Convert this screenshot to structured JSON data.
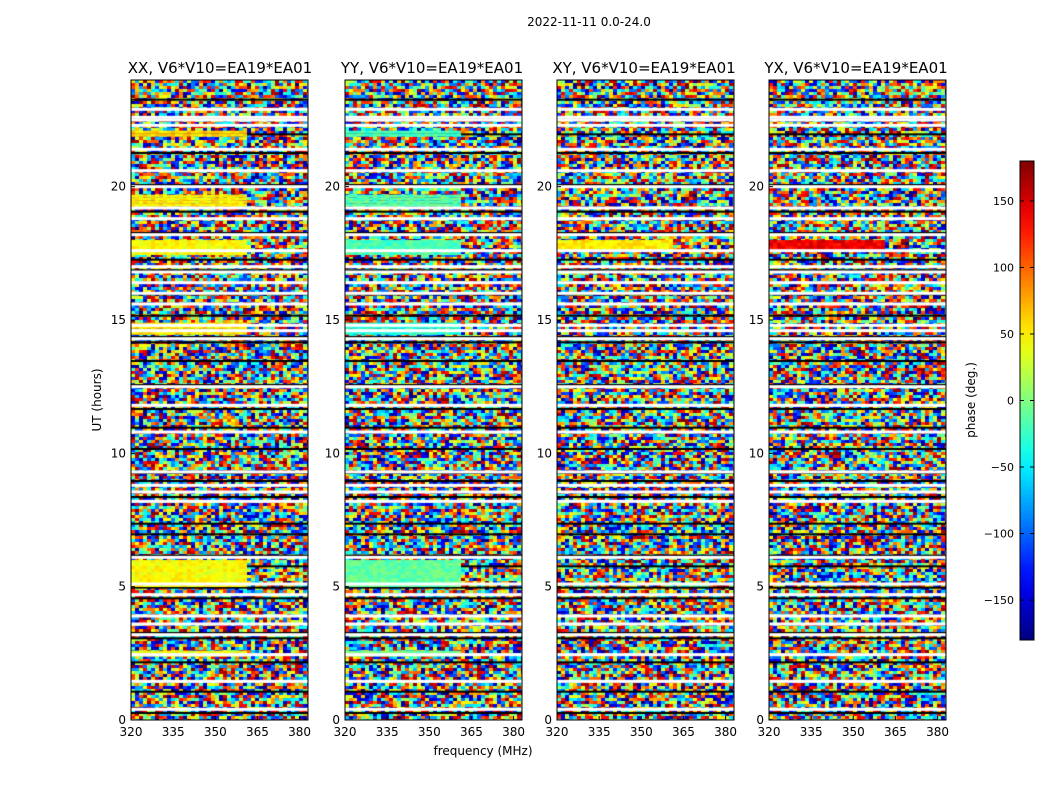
{
  "suptitle": "2022-11-11 0.0-24.0",
  "xlabel": "frequency (MHz)",
  "ylabel": "UT (hours)",
  "colorbar_label": "phase (deg.)",
  "chart_data": {
    "type": "heatmap",
    "title": "2022-11-11 0.0-24.0",
    "xlabel": "frequency (MHz)",
    "ylabel": "UT (hours)",
    "x_ticks": [
      320,
      335,
      350,
      365,
      380
    ],
    "y_ticks": [
      0,
      5,
      10,
      15,
      20
    ],
    "xlim": [
      320,
      383
    ],
    "ylim": [
      0,
      24
    ],
    "colormap": "jet",
    "colorbar": {
      "label": "phase (deg.)",
      "ticks": [
        150,
        100,
        50,
        0,
        -50,
        -100,
        -150
      ],
      "range": [
        -180,
        180
      ]
    },
    "panels": [
      {
        "title": "XX, V6*V10=EA19*EA01"
      },
      {
        "title": "YY, V6*V10=EA19*EA01"
      },
      {
        "title": "XY, V6*V10=EA19*EA01"
      },
      {
        "title": "YX, V6*V10=EA19*EA01"
      }
    ],
    "white_gaps_ut": [
      0.4,
      1.45,
      2.45,
      3.2,
      3.6,
      3.9,
      4.7,
      5.1,
      6.1,
      8.2,
      8.55,
      8.8,
      9.3,
      10.8,
      11.8,
      12.5,
      14.3,
      14.6,
      14.8,
      15.6,
      16.0,
      16.4,
      16.8,
      17.0,
      17.6,
      18.2,
      18.8,
      19.2,
      20.0,
      20.6,
      21.4,
      22.3,
      22.5,
      22.6,
      22.9
    ],
    "black_lines_ut": [
      0.3,
      1.1,
      1.5,
      2.2,
      3.1,
      3.3,
      4.6,
      5.0,
      5.8,
      6.2,
      7.0,
      7.4,
      8.4,
      9.0,
      9.3,
      10.2,
      11.0,
      11.7,
      12.6,
      13.5,
      14.2,
      14.4,
      15.2,
      16.0,
      16.9,
      17.3,
      18.3,
      19.1,
      20.1,
      21.3,
      22.0,
      22.6,
      23.3
    ],
    "coherent_bands": [
      {
        "panel": 0,
        "y": [
          21.9,
          22.1
        ],
        "phase": 60
      },
      {
        "panel": 0,
        "y": [
          19.3,
          19.7
        ],
        "phase": 50
      },
      {
        "panel": 0,
        "y": [
          17.5,
          18.0
        ],
        "phase": 45
      },
      {
        "panel": 0,
        "y": [
          14.5,
          14.9
        ],
        "phase": 55
      },
      {
        "panel": 0,
        "y": [
          5.0,
          6.0
        ],
        "phase": 45
      },
      {
        "panel": 0,
        "y": [
          2.4,
          2.6
        ],
        "phase": 40
      },
      {
        "panel": 1,
        "y": [
          21.9,
          22.1
        ],
        "phase": -20
      },
      {
        "panel": 1,
        "y": [
          19.3,
          19.7
        ],
        "phase": -15
      },
      {
        "panel": 1,
        "y": [
          17.5,
          18.0
        ],
        "phase": -20
      },
      {
        "panel": 1,
        "y": [
          14.5,
          14.9
        ],
        "phase": -30
      },
      {
        "panel": 1,
        "y": [
          5.0,
          6.0
        ],
        "phase": -10
      },
      {
        "panel": 1,
        "y": [
          2.4,
          2.6
        ],
        "phase": -5
      },
      {
        "panel": 2,
        "y": [
          17.6,
          18.0
        ],
        "phase": 50
      },
      {
        "panel": 3,
        "y": [
          17.6,
          18.0
        ],
        "phase": 140
      }
    ]
  }
}
